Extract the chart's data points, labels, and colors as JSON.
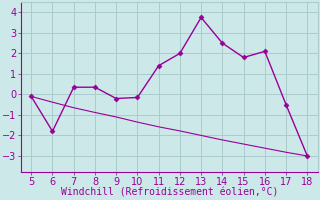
{
  "xlabel": "Windchill (Refroidissement éolien,°C)",
  "x": [
    5,
    6,
    7,
    8,
    9,
    10,
    11,
    12,
    13,
    14,
    15,
    16,
    17,
    18
  ],
  "y_line": [
    -0.1,
    -1.8,
    0.35,
    0.35,
    -0.2,
    -0.15,
    1.4,
    2.0,
    3.75,
    2.5,
    1.8,
    2.1,
    -0.5,
    -3.0
  ],
  "y_trend": [
    -0.1,
    -0.38,
    -0.65,
    -0.88,
    -1.1,
    -1.35,
    -1.58,
    -1.78,
    -2.0,
    -2.22,
    -2.42,
    -2.62,
    -2.82,
    -3.0
  ],
  "line_color": "#990099",
  "bg_color": "#cce8e8",
  "grid_color": "#aacccc",
  "ylim": [
    -3.8,
    4.5
  ],
  "xlim": [
    4.5,
    18.5
  ],
  "yticks": [
    -3,
    -2,
    -1,
    0,
    1,
    2,
    3,
    4
  ],
  "xticks": [
    5,
    6,
    7,
    8,
    9,
    10,
    11,
    12,
    13,
    14,
    15,
    16,
    17,
    18
  ],
  "markersize": 2.5,
  "linewidth": 1.0,
  "tick_fontsize": 7,
  "xlabel_fontsize": 7
}
